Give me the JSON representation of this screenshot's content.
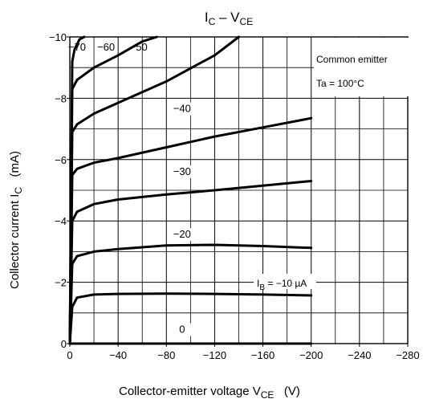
{
  "chart_data": {
    "type": "line",
    "title": {
      "main": "I",
      "main_sub": "C",
      "sep": " – V",
      "sep_sub": "CE"
    },
    "xlabel": {
      "text": "Collector-emitter voltage   V",
      "sub": "CE",
      "unit": "   (V)"
    },
    "ylabel": {
      "text": "Collector current   I",
      "sub": "C",
      "unit": "   (mA)"
    },
    "xlim": [
      0,
      -280
    ],
    "ylim": [
      0,
      -10
    ],
    "x_ticks": [
      0,
      -40,
      -80,
      -120,
      -160,
      -200,
      -240,
      -280
    ],
    "y_ticks": [
      0,
      -2,
      -4,
      -6,
      -8,
      -10
    ],
    "x_tick_labels": [
      "0",
      "−40",
      "−80",
      "−120",
      "−160",
      "−200",
      "−240",
      "−280"
    ],
    "y_tick_labels": [
      "0",
      "−2",
      "−4",
      "−6",
      "−8",
      "−10"
    ],
    "grid": true,
    "annotations": {
      "condition_1": "Common emitter",
      "condition_2": "Ta = 100°C",
      "ib_prefix": "I",
      "ib_sub": "B",
      "ib_rest": " = −10 µA"
    },
    "series": [
      {
        "name": "0",
        "label": "0",
        "x": [
          0,
          -200
        ],
        "y": [
          0,
          0
        ]
      },
      {
        "name": "−10 µA",
        "label": "",
        "x": [
          0,
          -2,
          -6,
          -20,
          -40,
          -80,
          -120,
          -160,
          -200
        ],
        "y": [
          0,
          -1.2,
          -1.5,
          -1.6,
          -1.62,
          -1.63,
          -1.62,
          -1.6,
          -1.57
        ]
      },
      {
        "name": "−20",
        "label": "−20",
        "x": [
          0,
          -2,
          -6,
          -20,
          -40,
          -80,
          -120,
          -160,
          -200
        ],
        "y": [
          0,
          -2.6,
          -2.85,
          -3.0,
          -3.08,
          -3.2,
          -3.22,
          -3.18,
          -3.12
        ]
      },
      {
        "name": "−30",
        "label": "−30",
        "x": [
          0,
          -2,
          -6,
          -20,
          -40,
          -80,
          -120,
          -160,
          -200
        ],
        "y": [
          0,
          -4.0,
          -4.3,
          -4.55,
          -4.7,
          -4.86,
          -5.0,
          -5.15,
          -5.3
        ]
      },
      {
        "name": "−40",
        "label": "−40",
        "x": [
          0,
          -2,
          -6,
          -20,
          -40,
          -80,
          -120,
          -160,
          -200
        ],
        "y": [
          0,
          -5.5,
          -5.7,
          -5.9,
          -6.05,
          -6.4,
          -6.75,
          -7.05,
          -7.35
        ]
      },
      {
        "name": "−50",
        "label": "−50",
        "x": [
          0,
          -2,
          -6,
          -20,
          -40,
          -80,
          -120,
          -140
        ],
        "y": [
          0,
          -6.9,
          -7.15,
          -7.5,
          -7.85,
          -8.55,
          -9.4,
          -10.0
        ]
      },
      {
        "name": "−60",
        "label": "−60",
        "x": [
          0,
          -2,
          -6,
          -20,
          -40,
          -60,
          -72
        ],
        "y": [
          0,
          -8.3,
          -8.6,
          -9.0,
          -9.4,
          -9.85,
          -10.0
        ]
      },
      {
        "name": "−70",
        "label": "−70",
        "x": [
          0,
          -2,
          -4,
          -8,
          -12
        ],
        "y": [
          0,
          -9.2,
          -9.6,
          -9.92,
          -10.0
        ]
      }
    ]
  }
}
